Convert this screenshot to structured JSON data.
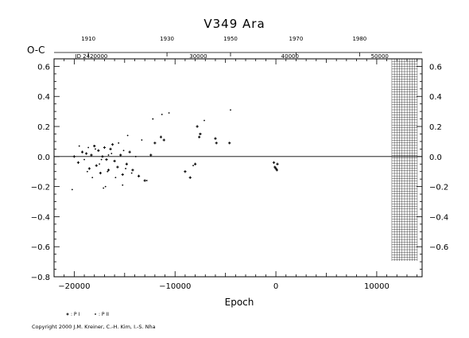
{
  "title": "V349  Ara",
  "y_axis_label": "O-C",
  "copyright": "Copyright 2000 J.M. Kreiner, C.-H. Kim, I.-S. Nha",
  "legend": [
    {
      "symbol": "+",
      "label": ": P I"
    },
    {
      "symbol": "·",
      "label": ": P II"
    }
  ],
  "chart_data": {
    "type": "scatter",
    "title": "V349  Ara",
    "xlabel": "Epoch",
    "ylabel": "O-C",
    "xlim": [
      -22000,
      14500
    ],
    "ylim": [
      -0.8,
      0.65
    ],
    "x_ticks": [
      -20000,
      -10000,
      0,
      10000
    ],
    "x_tick_labels": [
      "−20000",
      "−10000",
      "0",
      "10000"
    ],
    "y_ticks": [
      -0.8,
      -0.6,
      -0.4,
      -0.2,
      0.0,
      0.2,
      0.4,
      0.6
    ],
    "y_tick_labels": [
      "−0.8",
      "−0.6",
      "−0.4",
      "−0.2",
      "0.0",
      "0.2",
      "0.4",
      "0.6"
    ],
    "right_ticks": [
      -0.6,
      -0.4,
      -0.2,
      0.0,
      0.2,
      0.4,
      0.6
    ],
    "right_tick_labels": [
      "−0.6",
      "−0.4",
      "−0.2",
      "0.0",
      "0.2",
      "0.4",
      "0.6"
    ],
    "top_year_ticks": [
      {
        "epoch": -18600,
        "label": "1910"
      },
      {
        "epoch": -10800,
        "label": "1930"
      },
      {
        "epoch": -4500,
        "label": "1950"
      },
      {
        "epoch": 2000,
        "label": "1970"
      },
      {
        "epoch": 8300,
        "label": "1980"
      }
    ],
    "top_jd_ticks": [
      {
        "epoch": -18300,
        "label": "JD 2420000"
      },
      {
        "epoch": -7700,
        "label": "30000"
      },
      {
        "epoch": 1400,
        "label": "40000"
      },
      {
        "epoch": 10300,
        "label": "50000"
      }
    ],
    "grid": false,
    "future_region_start": 11500,
    "zero_line": true,
    "legend_position": "bottom-left",
    "series": [
      {
        "name": "P I",
        "marker": "+",
        "points": [
          [
            -20000,
            0.0
          ],
          [
            -19600,
            -0.04
          ],
          [
            -19200,
            0.03
          ],
          [
            -18800,
            0.02
          ],
          [
            -18500,
            -0.08
          ],
          [
            -18300,
            0.01
          ],
          [
            -18000,
            0.07
          ],
          [
            -17800,
            -0.06
          ],
          [
            -17600,
            0.04
          ],
          [
            -17400,
            -0.11
          ],
          [
            -17200,
            0.0
          ],
          [
            -17000,
            0.06
          ],
          [
            -16800,
            -0.02
          ],
          [
            -16600,
            -0.09
          ],
          [
            -16400,
            0.05
          ],
          [
            -16200,
            0.08
          ],
          [
            -16000,
            -0.03
          ],
          [
            -15700,
            -0.07
          ],
          [
            -15400,
            0.01
          ],
          [
            -15200,
            -0.12
          ],
          [
            -14800,
            -0.05
          ],
          [
            -14500,
            0.03
          ],
          [
            -14200,
            -0.09
          ],
          [
            -13600,
            -0.13
          ],
          [
            -13000,
            -0.16
          ],
          [
            -12400,
            0.01
          ],
          [
            -12000,
            0.09
          ],
          [
            -11400,
            0.13
          ],
          [
            -11100,
            0.11
          ],
          [
            -9000,
            -0.1
          ],
          [
            -8500,
            -0.14
          ],
          [
            -8000,
            -0.05
          ],
          [
            -7800,
            0.2
          ],
          [
            -7600,
            0.13
          ],
          [
            -7500,
            0.15
          ],
          [
            -6000,
            0.12
          ],
          [
            -5900,
            0.09
          ],
          [
            -4600,
            0.09
          ],
          [
            -200,
            -0.04
          ],
          [
            -100,
            -0.07
          ],
          [
            0,
            -0.08
          ],
          [
            100,
            -0.09
          ],
          [
            150,
            -0.05
          ]
        ]
      },
      {
        "name": "P II",
        "marker": "dot",
        "points": [
          [
            -20200,
            -0.22
          ],
          [
            -19500,
            0.07
          ],
          [
            -19000,
            -0.02
          ],
          [
            -18600,
            0.06
          ],
          [
            -18200,
            -0.14
          ],
          [
            -17900,
            0.05
          ],
          [
            -17500,
            -0.05
          ],
          [
            -17100,
            -0.21
          ],
          [
            -16900,
            -0.2
          ],
          [
            -16700,
            -0.1
          ],
          [
            -16300,
            0.02
          ],
          [
            -15900,
            -0.14
          ],
          [
            -15600,
            0.09
          ],
          [
            -15100,
            0.04
          ],
          [
            -14900,
            -0.08
          ],
          [
            -14300,
            -0.11
          ],
          [
            -13900,
            0.0
          ],
          [
            -13300,
            0.11
          ],
          [
            -12800,
            -0.16
          ],
          [
            -12200,
            0.25
          ],
          [
            -11300,
            0.28
          ],
          [
            -10600,
            0.29
          ],
          [
            -8200,
            -0.06
          ],
          [
            -7100,
            0.24
          ],
          [
            -4500,
            0.31
          ],
          [
            -14700,
            0.14
          ],
          [
            -16600,
            0.01
          ],
          [
            -17300,
            -0.02
          ],
          [
            -18700,
            -0.1
          ],
          [
            -15200,
            -0.19
          ]
        ]
      }
    ]
  }
}
